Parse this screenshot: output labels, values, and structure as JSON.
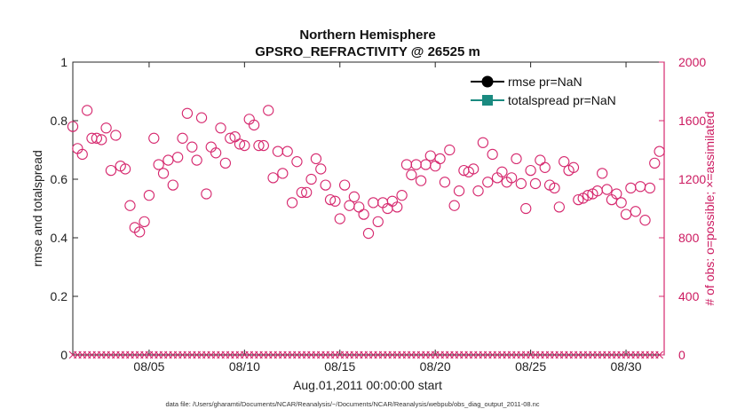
{
  "chart_data": {
    "type": "scatter",
    "title_line1": "Northern Hemisphere",
    "title_line2": "GPSRO_REFRACTIVITY @ 26525 m",
    "xlabel": "Aug.01,2011 00:00:00 start",
    "ylabel": "rmse and totalspread",
    "ylabel_right": "# of obs: o=possible; ×=assimilated",
    "ylim": [
      0,
      1
    ],
    "ylim_right": [
      0,
      2000
    ],
    "xlim_days": [
      1,
      32
    ],
    "yticks": [
      "0",
      "0.2",
      "0.4",
      "0.6",
      "0.8",
      "1"
    ],
    "yticks_right": [
      "0",
      "400",
      "800",
      "1200",
      "1600",
      "2000"
    ],
    "xticks": [
      {
        "day": 5,
        "label": "08/05"
      },
      {
        "day": 10,
        "label": "08/10"
      },
      {
        "day": 15,
        "label": "08/15"
      },
      {
        "day": 20,
        "label": "08/20"
      },
      {
        "day": 25,
        "label": "08/25"
      },
      {
        "day": 30,
        "label": "08/30"
      }
    ],
    "legend": [
      {
        "name": "rmse pr=NaN",
        "color": "#000000",
        "marker": "circle"
      },
      {
        "name": "totalspread pr=NaN",
        "color": "#1a8a80",
        "marker": "square"
      }
    ],
    "series": [
      {
        "name": "possible",
        "axis": "right",
        "marker": "circle",
        "color": "#d6286e",
        "days": [
          1.0,
          1.25,
          1.5,
          1.75,
          2.0,
          2.25,
          2.5,
          2.75,
          3.0,
          3.25,
          3.5,
          3.75,
          4.0,
          4.25,
          4.5,
          4.75,
          5.0,
          5.25,
          5.5,
          5.75,
          6.0,
          6.25,
          6.5,
          6.75,
          7.0,
          7.25,
          7.5,
          7.75,
          8.0,
          8.25,
          8.5,
          8.75,
          9.0,
          9.25,
          9.5,
          9.75,
          10.0,
          10.25,
          10.5,
          10.75,
          11.0,
          11.25,
          11.5,
          11.75,
          12.0,
          12.25,
          12.5,
          12.75,
          13.0,
          13.25,
          13.5,
          13.75,
          14.0,
          14.25,
          14.5,
          14.75,
          15.0,
          15.25,
          15.5,
          15.75,
          16.0,
          16.25,
          16.5,
          16.75,
          17.0,
          17.25,
          17.5,
          17.75,
          18.0,
          18.25,
          18.5,
          18.75,
          19.0,
          19.25,
          19.5,
          19.75,
          20.0,
          20.25,
          20.5,
          20.75,
          21.0,
          21.25,
          21.5,
          21.75,
          22.0,
          22.25,
          22.5,
          22.75,
          23.0,
          23.25,
          23.5,
          23.75,
          24.0,
          24.25,
          24.5,
          24.75,
          25.0,
          25.25,
          25.5,
          25.75,
          26.0,
          26.25,
          26.5,
          26.75,
          27.0,
          27.25,
          27.5,
          27.75,
          28.0,
          28.25,
          28.5,
          28.75,
          29.0,
          29.25,
          29.5,
          29.75,
          30.0,
          30.25,
          30.5,
          30.75,
          31.0,
          31.25,
          31.5,
          31.75
        ],
        "values": [
          1560,
          1410,
          1370,
          1670,
          1480,
          1480,
          1470,
          1550,
          1260,
          1500,
          1290,
          1270,
          1020,
          870,
          840,
          910,
          1090,
          1480,
          1300,
          1240,
          1330,
          1160,
          1350,
          1480,
          1650,
          1420,
          1330,
          1620,
          1100,
          1420,
          1380,
          1550,
          1310,
          1480,
          1490,
          1440,
          1430,
          1610,
          1570,
          1430,
          1430,
          1670,
          1210,
          1390,
          1240,
          1390,
          1040,
          1320,
          1110,
          1110,
          1200,
          1340,
          1270,
          1160,
          1060,
          1050,
          930,
          1160,
          1020,
          1080,
          1010,
          960,
          830,
          1040,
          910,
          1040,
          1000,
          1050,
          1010,
          1090,
          1300,
          1230,
          1300,
          1190,
          1300,
          1360,
          1290,
          1340,
          1180,
          1400,
          1020,
          1120,
          1260,
          1250,
          1270,
          1120,
          1450,
          1180,
          1370,
          1210,
          1250,
          1180,
          1210,
          1340,
          1170,
          1000,
          1260,
          1170,
          1330,
          1280,
          1160,
          1140,
          1010,
          1320,
          1260,
          1280,
          1060,
          1070,
          1090,
          1100,
          1120,
          1240,
          1130,
          1060,
          1100,
          1040,
          960,
          1140,
          980,
          1150,
          920,
          1140,
          1310,
          1390
        ]
      },
      {
        "name": "assimilated",
        "axis": "right",
        "marker": "x",
        "color": "#d6286e",
        "days": [
          1.0,
          1.25,
          1.5,
          1.75,
          2.0,
          2.25,
          2.5,
          2.75,
          3.0,
          3.25,
          3.5,
          3.75,
          4.0,
          4.25,
          4.5,
          4.75,
          5.0,
          5.25,
          5.5,
          5.75,
          6.0,
          6.25,
          6.5,
          6.75,
          7.0,
          7.25,
          7.5,
          7.75,
          8.0,
          8.25,
          8.5,
          8.75,
          9.0,
          9.25,
          9.5,
          9.75,
          10.0,
          10.25,
          10.5,
          10.75,
          11.0,
          11.25,
          11.5,
          11.75,
          12.0,
          12.25,
          12.5,
          12.75,
          13.0,
          13.25,
          13.5,
          13.75,
          14.0,
          14.25,
          14.5,
          14.75,
          15.0,
          15.25,
          15.5,
          15.75,
          16.0,
          16.25,
          16.5,
          16.75,
          17.0,
          17.25,
          17.5,
          17.75,
          18.0,
          18.25,
          18.5,
          18.75,
          19.0,
          19.25,
          19.5,
          19.75,
          20.0,
          20.25,
          20.5,
          20.75,
          21.0,
          21.25,
          21.5,
          21.75,
          22.0,
          22.25,
          22.5,
          22.75,
          23.0,
          23.25,
          23.5,
          23.75,
          24.0,
          24.25,
          24.5,
          24.75,
          25.0,
          25.25,
          25.5,
          25.75,
          26.0,
          26.25,
          26.5,
          26.75,
          27.0,
          27.25,
          27.5,
          27.75,
          28.0,
          28.25,
          28.5,
          28.75,
          29.0,
          29.25,
          29.5,
          29.75,
          30.0,
          30.25,
          30.5,
          30.75,
          31.0,
          31.25,
          31.5,
          31.75
        ],
        "values": [
          0,
          0,
          0,
          0,
          0,
          0,
          0,
          0,
          0,
          0,
          0,
          0,
          0,
          0,
          0,
          0,
          0,
          0,
          0,
          0,
          0,
          0,
          0,
          0,
          0,
          0,
          0,
          0,
          0,
          0,
          0,
          0,
          0,
          0,
          0,
          0,
          0,
          0,
          0,
          0,
          0,
          0,
          0,
          0,
          0,
          0,
          0,
          0,
          0,
          0,
          0,
          0,
          0,
          0,
          0,
          0,
          0,
          0,
          0,
          0,
          0,
          0,
          0,
          0,
          0,
          0,
          0,
          0,
          0,
          0,
          0,
          0,
          0,
          0,
          0,
          0,
          0,
          0,
          0,
          0,
          0,
          0,
          0,
          0,
          0,
          0,
          0,
          0,
          0,
          0,
          0,
          0,
          0,
          0,
          0,
          0,
          0,
          0,
          0,
          0,
          0,
          0,
          0,
          0,
          0,
          0,
          0,
          0,
          0,
          0,
          0,
          0,
          0,
          0,
          0,
          0,
          0,
          0,
          0,
          0,
          0,
          0,
          0,
          0
        ]
      }
    ],
    "footer": "data file: /Users/gharamti/Documents/NCAR/Reanalysis/~/Documents/NCAR/Reanalysis/webpub/obs_diag_output_2011-08.nc"
  }
}
